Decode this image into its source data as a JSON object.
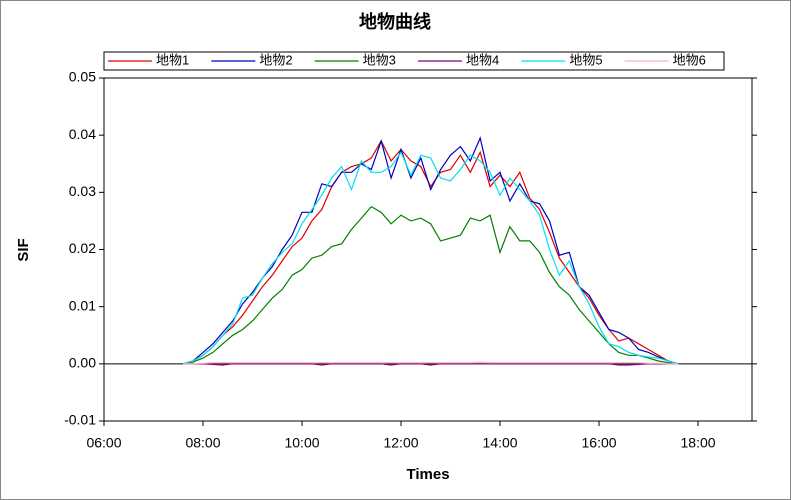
{
  "chart_data": {
    "type": "line",
    "title": "地物曲线",
    "x_label": "Times",
    "y_label": "SIF",
    "x": [
      7.6,
      7.8,
      8.0,
      8.2,
      8.4,
      8.6,
      8.8,
      9.0,
      9.2,
      9.4,
      9.6,
      9.8,
      10.0,
      10.2,
      10.4,
      10.6,
      10.8,
      11.0,
      11.2,
      11.4,
      11.6,
      11.8,
      12.0,
      12.2,
      12.4,
      12.6,
      12.8,
      13.0,
      13.2,
      13.4,
      13.6,
      13.8,
      14.0,
      14.2,
      14.4,
      14.6,
      14.8,
      15.0,
      15.2,
      15.4,
      15.6,
      15.8,
      16.0,
      16.2,
      16.4,
      16.6,
      16.8,
      17.0,
      17.2,
      17.4,
      17.6
    ],
    "series": [
      {
        "name": "地物1",
        "color": "#e00000",
        "values": [
          0,
          0.0005,
          0.0015,
          0.003,
          0.005,
          0.0065,
          0.0085,
          0.011,
          0.0135,
          0.0155,
          0.018,
          0.0205,
          0.022,
          0.025,
          0.027,
          0.031,
          0.0335,
          0.0345,
          0.035,
          0.036,
          0.039,
          0.0355,
          0.0375,
          0.0355,
          0.0345,
          0.031,
          0.0335,
          0.034,
          0.0365,
          0.0335,
          0.037,
          0.031,
          0.033,
          0.031,
          0.0335,
          0.029,
          0.027,
          0.023,
          0.0185,
          0.016,
          0.0135,
          0.0115,
          0.0085,
          0.006,
          0.004,
          0.0045,
          0.0035,
          0.0025,
          0.0015,
          0.0005,
          0
        ]
      },
      {
        "name": "地物2",
        "color": "#0000c0",
        "values": [
          0,
          0.0005,
          0.002,
          0.0035,
          0.0055,
          0.0075,
          0.0105,
          0.0125,
          0.015,
          0.017,
          0.02,
          0.0225,
          0.0265,
          0.0265,
          0.0315,
          0.031,
          0.0335,
          0.0335,
          0.035,
          0.034,
          0.039,
          0.0325,
          0.0375,
          0.0325,
          0.036,
          0.0305,
          0.034,
          0.0365,
          0.038,
          0.0355,
          0.0395,
          0.032,
          0.0335,
          0.0285,
          0.0315,
          0.0285,
          0.028,
          0.025,
          0.019,
          0.0195,
          0.0135,
          0.012,
          0.009,
          0.006,
          0.0055,
          0.0045,
          0.0025,
          0.002,
          0.0012,
          0.0005,
          0
        ]
      },
      {
        "name": "地物3",
        "color": "#008000",
        "values": [
          0,
          0.0003,
          0.001,
          0.002,
          0.0035,
          0.005,
          0.006,
          0.0075,
          0.0095,
          0.0115,
          0.013,
          0.0155,
          0.0165,
          0.0185,
          0.019,
          0.0205,
          0.021,
          0.0235,
          0.0255,
          0.0275,
          0.0265,
          0.0245,
          0.026,
          0.025,
          0.0255,
          0.0245,
          0.0215,
          0.022,
          0.0225,
          0.0255,
          0.025,
          0.026,
          0.0195,
          0.024,
          0.0215,
          0.0215,
          0.0195,
          0.016,
          0.0135,
          0.012,
          0.0095,
          0.0075,
          0.0055,
          0.0035,
          0.002,
          0.0015,
          0.0015,
          0.001,
          0.0005,
          0.0002,
          0
        ]
      },
      {
        "name": "地物4",
        "color": "#800080",
        "values": [
          0,
          0,
          0,
          -0.0001,
          -0.0002,
          0,
          0,
          0,
          0,
          0,
          0,
          0,
          0,
          0,
          -0.0002,
          0,
          0,
          0,
          0,
          0,
          0,
          -0.0002,
          0,
          0,
          0,
          -0.0002,
          0,
          0,
          0,
          0,
          0,
          0,
          0,
          0,
          0,
          0,
          0,
          0,
          0,
          0,
          0,
          0,
          0,
          0,
          -0.0002,
          -0.0002,
          -0.0001,
          0,
          0,
          0,
          0
        ]
      },
      {
        "name": "地物5",
        "color": "#00e0f0",
        "values": [
          0,
          0.0005,
          0.0015,
          0.003,
          0.005,
          0.007,
          0.0115,
          0.012,
          0.015,
          0.0175,
          0.0195,
          0.021,
          0.0245,
          0.027,
          0.0295,
          0.0325,
          0.0345,
          0.0305,
          0.0355,
          0.0335,
          0.0335,
          0.0345,
          0.037,
          0.033,
          0.0365,
          0.036,
          0.0325,
          0.032,
          0.034,
          0.0365,
          0.0355,
          0.0335,
          0.0295,
          0.0325,
          0.0305,
          0.0285,
          0.026,
          0.02,
          0.0155,
          0.018,
          0.0135,
          0.0105,
          0.0065,
          0.0035,
          0.003,
          0.002,
          0.0015,
          0.0012,
          0.001,
          0.0005,
          0
        ]
      },
      {
        "name": "地物6",
        "color": "#ffb0c8",
        "values": [
          0,
          0,
          0.0001,
          0.0002,
          0.0002,
          0.0002,
          0.0002,
          0.0002,
          0.0002,
          0.0002,
          0.0002,
          0.0002,
          0.0002,
          0.0002,
          0.0002,
          0.0002,
          0.0002,
          0.0002,
          0.0002,
          0.0002,
          0.0002,
          0.0002,
          0.0002,
          0.0002,
          0.0002,
          0.0002,
          0.0002,
          0.0002,
          0.0002,
          0.0002,
          0.0003,
          0.0002,
          0.0002,
          0.0002,
          0.0002,
          0.0002,
          0.0002,
          0.0002,
          0.0002,
          0.0002,
          0.0002,
          0.0002,
          0.0002,
          0.0002,
          0.0002,
          0.0002,
          0.0002,
          0.0001,
          0.0001,
          0,
          0
        ]
      }
    ],
    "xlim": [
      6,
      19.09
    ],
    "xticks": [
      {
        "value": 6,
        "label": "06:00"
      },
      {
        "value": 8,
        "label": "08:00"
      },
      {
        "value": 10,
        "label": "10:00"
      },
      {
        "value": 12,
        "label": "12:00"
      },
      {
        "value": 14,
        "label": "14:00"
      },
      {
        "value": 16,
        "label": "16:00"
      },
      {
        "value": 18,
        "label": "18:00"
      }
    ],
    "ylim": [
      -0.01,
      0.05
    ],
    "yticks": [
      {
        "value": -0.01,
        "label": "-0.01"
      },
      {
        "value": 0,
        "label": "0.00"
      },
      {
        "value": 0.01,
        "label": "0.01"
      },
      {
        "value": 0.02,
        "label": "0.02"
      },
      {
        "value": 0.03,
        "label": "0.03"
      },
      {
        "value": 0.04,
        "label": "0.04"
      },
      {
        "value": 0.05,
        "label": "0.05"
      }
    ],
    "legend": "top"
  }
}
